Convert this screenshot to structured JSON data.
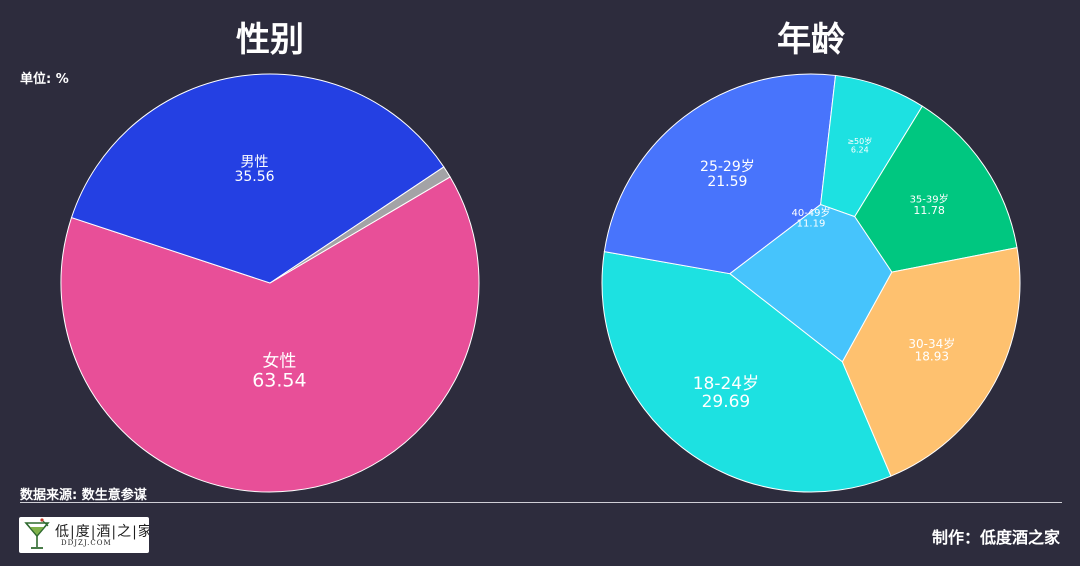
{
  "chart_data": [
    {
      "type": "pie",
      "title": "性别",
      "categories": [
        "女性",
        "男性",
        ""
      ],
      "values": [
        63.54,
        35.56,
        0.9
      ],
      "value_labels": [
        "63.54",
        "35.56",
        ""
      ],
      "colors": [
        "#e84f98",
        "#2440e3",
        "#a3a3a6"
      ],
      "legend": "none"
    },
    {
      "type": "pie",
      "title": "年龄",
      "categories": [
        "18-24岁",
        "25-29岁",
        "≥50岁",
        "35-39岁",
        "30-34岁",
        "40-49岁"
      ],
      "values": [
        29.69,
        21.59,
        6.24,
        11.78,
        18.93,
        11.19
      ],
      "value_labels": [
        "29.69",
        "21.59",
        "6.24",
        "11.78",
        "18.93",
        "11.19"
      ],
      "colors": [
        "#1de1e1",
        "#4874fc",
        "#1de1e1",
        "#00c780",
        "#fec16f",
        "#46c4fc"
      ],
      "legend": "none"
    }
  ],
  "footer": {
    "unit": "单位: %",
    "source": "数据来源: 数生意参谋",
    "maker": "制作：低度酒之家"
  },
  "logo": {
    "name": "低|度|酒|之|家",
    "domain": "DDJZJ.COM"
  }
}
